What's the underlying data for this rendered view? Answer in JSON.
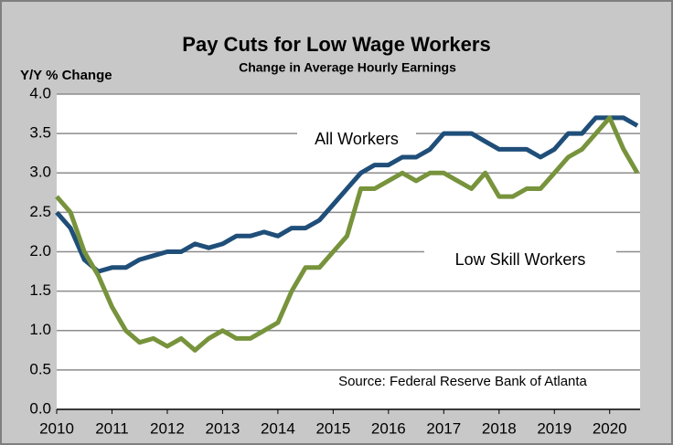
{
  "chart_data": {
    "type": "line",
    "title": "Pay Cuts for Low Wage Workers",
    "subtitle": "Change in Average Hourly Earnings",
    "y_label": "Y/Y % Change",
    "source": "Source: Federal Reserve Bank of Atlanta",
    "x": [
      2010,
      2010.25,
      2010.5,
      2010.75,
      2011,
      2011.25,
      2011.5,
      2011.75,
      2012,
      2012.25,
      2012.5,
      2012.75,
      2013,
      2013.25,
      2013.5,
      2013.75,
      2014,
      2014.25,
      2014.5,
      2014.75,
      2015,
      2015.25,
      2015.5,
      2015.75,
      2016,
      2016.25,
      2016.5,
      2016.75,
      2017,
      2017.25,
      2017.5,
      2017.75,
      2018,
      2018.25,
      2018.5,
      2018.75,
      2019,
      2019.25,
      2019.5,
      2019.75,
      2020,
      2020.25,
      2020.5
    ],
    "series": [
      {
        "name": "All Workers",
        "color": "#1f4e79",
        "values": [
          2.5,
          2.3,
          1.9,
          1.75,
          1.8,
          1.8,
          1.9,
          1.95,
          2.0,
          2.0,
          2.1,
          2.05,
          2.1,
          2.2,
          2.2,
          2.25,
          2.2,
          2.3,
          2.3,
          2.4,
          2.6,
          2.8,
          3.0,
          3.1,
          3.1,
          3.2,
          3.2,
          3.3,
          3.5,
          3.5,
          3.5,
          3.4,
          3.3,
          3.3,
          3.3,
          3.2,
          3.3,
          3.5,
          3.5,
          3.7,
          3.7,
          3.7,
          3.6
        ]
      },
      {
        "name": "Low Skill Workers",
        "color": "#77933c",
        "values": [
          2.7,
          2.5,
          2.0,
          1.7,
          1.3,
          1.0,
          0.85,
          0.9,
          0.8,
          0.9,
          0.75,
          0.9,
          1.0,
          0.9,
          0.9,
          1.0,
          1.1,
          1.5,
          1.8,
          1.8,
          2.0,
          2.2,
          2.8,
          2.8,
          2.9,
          3.0,
          2.9,
          3.0,
          3.0,
          2.9,
          2.8,
          3.0,
          2.7,
          2.7,
          2.8,
          2.8,
          3.0,
          3.2,
          3.3,
          3.5,
          3.7,
          3.3,
          3.0
        ]
      }
    ],
    "xlim": [
      2010,
      2020.55
    ],
    "xticks": [
      2010,
      2011,
      2012,
      2013,
      2014,
      2015,
      2016,
      2017,
      2018,
      2019,
      2020
    ],
    "ylim": [
      0,
      4
    ],
    "yticks": [
      {
        "value": 0,
        "label": "0.0"
      },
      {
        "value": 0.5,
        "label": "0.5"
      },
      {
        "value": 1,
        "label": "1.0"
      },
      {
        "value": 1.5,
        "label": "1.5"
      },
      {
        "value": 2,
        "label": "2.0"
      },
      {
        "value": 2.5,
        "label": "2.5"
      },
      {
        "value": 3,
        "label": "3.0"
      },
      {
        "value": 3.5,
        "label": "3.5"
      },
      {
        "value": 4,
        "label": "4.0"
      }
    ],
    "grid": true
  }
}
